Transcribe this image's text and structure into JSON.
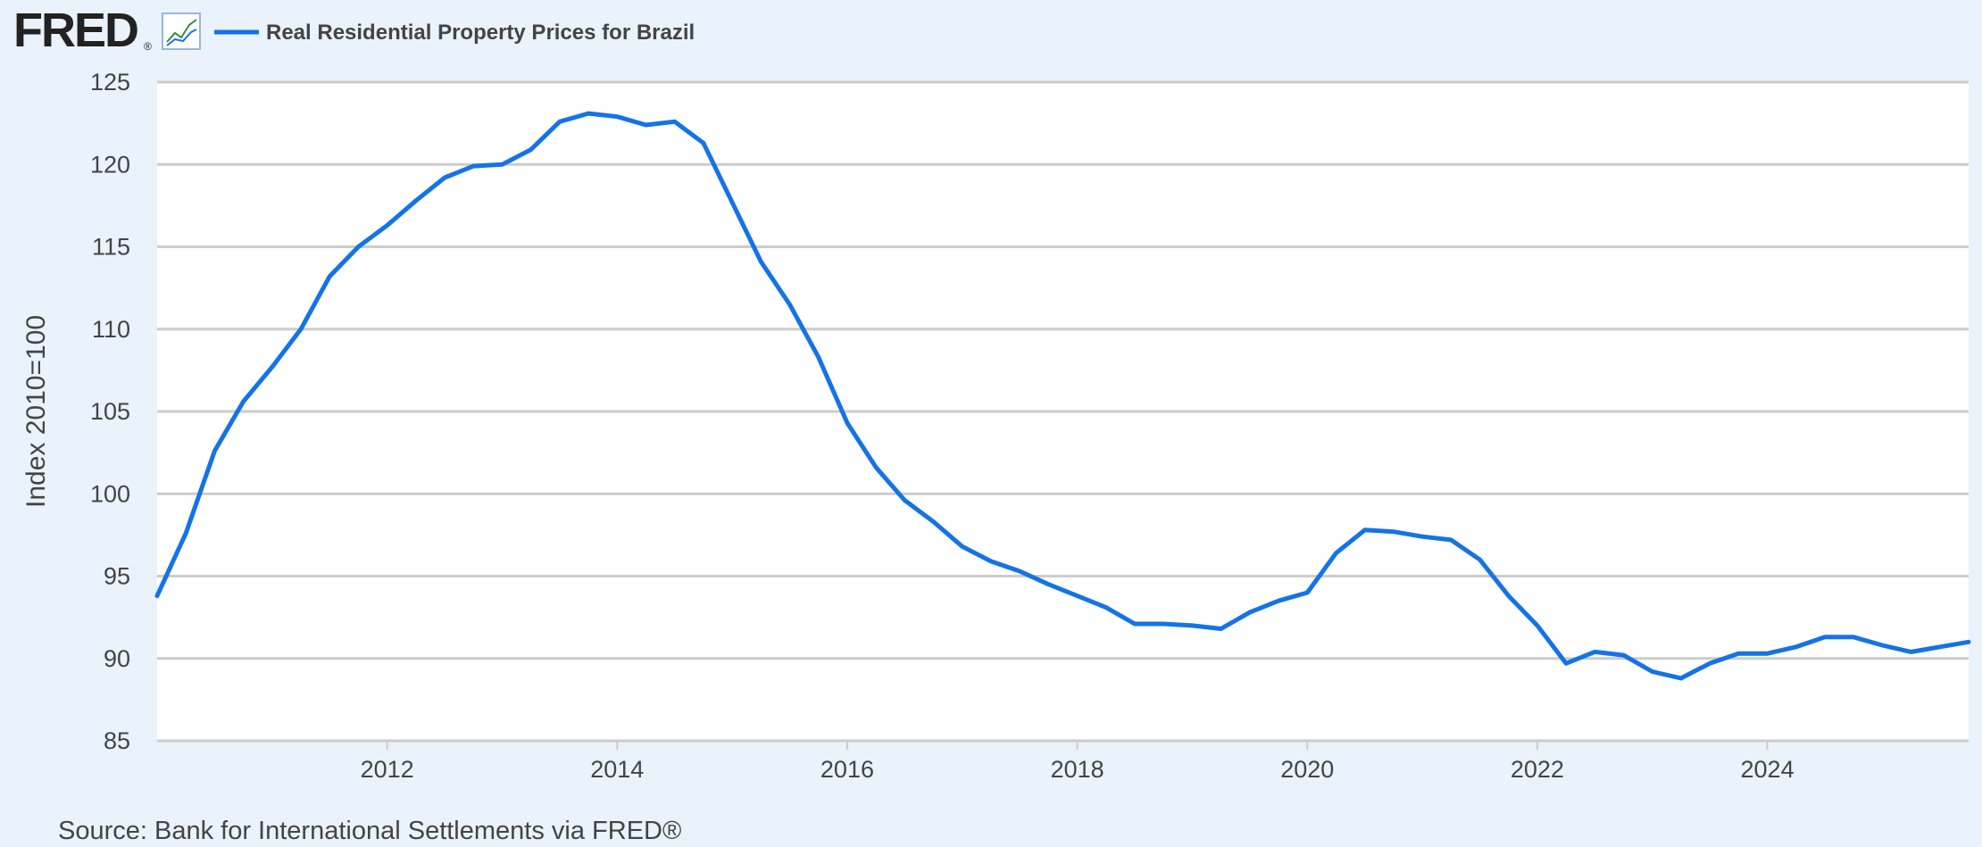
{
  "header": {
    "logo_text": "FRED",
    "logo_mark": "®",
    "logo_icon": "line-chart-icon",
    "legend_label": "Real Residential Property Prices for Brazil"
  },
  "footer": {
    "source": "Source: Bank for International Settlements via FRED®"
  },
  "colors": {
    "background": "#eaf2fb",
    "plot_background": "#ffffff",
    "series": "#1473e6",
    "grid": "#cccccc",
    "text": "#444444",
    "logo": "#222222"
  },
  "chart_data": {
    "type": "line",
    "title": "",
    "xlabel": "",
    "ylabel": "Index 2010=100",
    "ylim": [
      85,
      125
    ],
    "yticks": [
      85,
      90,
      95,
      100,
      105,
      110,
      115,
      120,
      125
    ],
    "xlim": [
      "2010-01-01",
      "2025-10-01"
    ],
    "xticks": [
      "2012",
      "2014",
      "2016",
      "2018",
      "2020",
      "2022",
      "2024"
    ],
    "grid": true,
    "legend": "top-left",
    "series": [
      {
        "name": "Real Residential Property Prices for Brazil",
        "x": [
          "2010-01-01",
          "2010-04-01",
          "2010-07-01",
          "2010-10-01",
          "2011-01-01",
          "2011-04-01",
          "2011-07-01",
          "2011-10-01",
          "2012-01-01",
          "2012-04-01",
          "2012-07-01",
          "2012-10-01",
          "2013-01-01",
          "2013-04-01",
          "2013-07-01",
          "2013-10-01",
          "2014-01-01",
          "2014-04-01",
          "2014-07-01",
          "2014-10-01",
          "2015-01-01",
          "2015-04-01",
          "2015-07-01",
          "2015-10-01",
          "2016-01-01",
          "2016-04-01",
          "2016-07-01",
          "2016-10-01",
          "2017-01-01",
          "2017-04-01",
          "2017-07-01",
          "2017-10-01",
          "2018-01-01",
          "2018-04-01",
          "2018-07-01",
          "2018-10-01",
          "2019-01-01",
          "2019-04-01",
          "2019-07-01",
          "2019-10-01",
          "2020-01-01",
          "2020-04-01",
          "2020-07-01",
          "2020-10-01",
          "2021-01-01",
          "2021-04-01",
          "2021-07-01",
          "2021-10-01",
          "2022-01-01",
          "2022-04-01",
          "2022-07-01",
          "2022-10-01",
          "2023-01-01",
          "2023-04-01",
          "2023-07-01",
          "2023-10-01",
          "2024-01-01",
          "2024-04-01",
          "2024-07-01",
          "2024-10-01",
          "2025-01-01",
          "2025-04-01",
          "2025-07-01",
          "2025-10-01"
        ],
        "values": [
          93.8,
          97.6,
          102.6,
          105.6,
          107.7,
          110.0,
          113.2,
          115.0,
          116.3,
          117.8,
          119.2,
          119.9,
          120.0,
          120.9,
          122.6,
          123.1,
          122.9,
          122.4,
          122.6,
          121.3,
          117.7,
          114.1,
          111.5,
          108.3,
          104.3,
          101.6,
          99.6,
          98.3,
          96.8,
          95.9,
          95.3,
          94.5,
          93.8,
          93.1,
          92.1,
          92.1,
          92.0,
          91.8,
          92.8,
          93.5,
          94.0,
          96.4,
          97.8,
          97.7,
          97.4,
          97.2,
          96.0,
          93.8,
          92.0,
          89.7,
          90.4,
          90.2,
          89.2,
          88.8,
          89.7,
          90.3,
          90.3,
          90.7,
          91.3,
          91.3,
          90.8,
          90.4,
          90.7,
          91.0
        ]
      }
    ]
  }
}
